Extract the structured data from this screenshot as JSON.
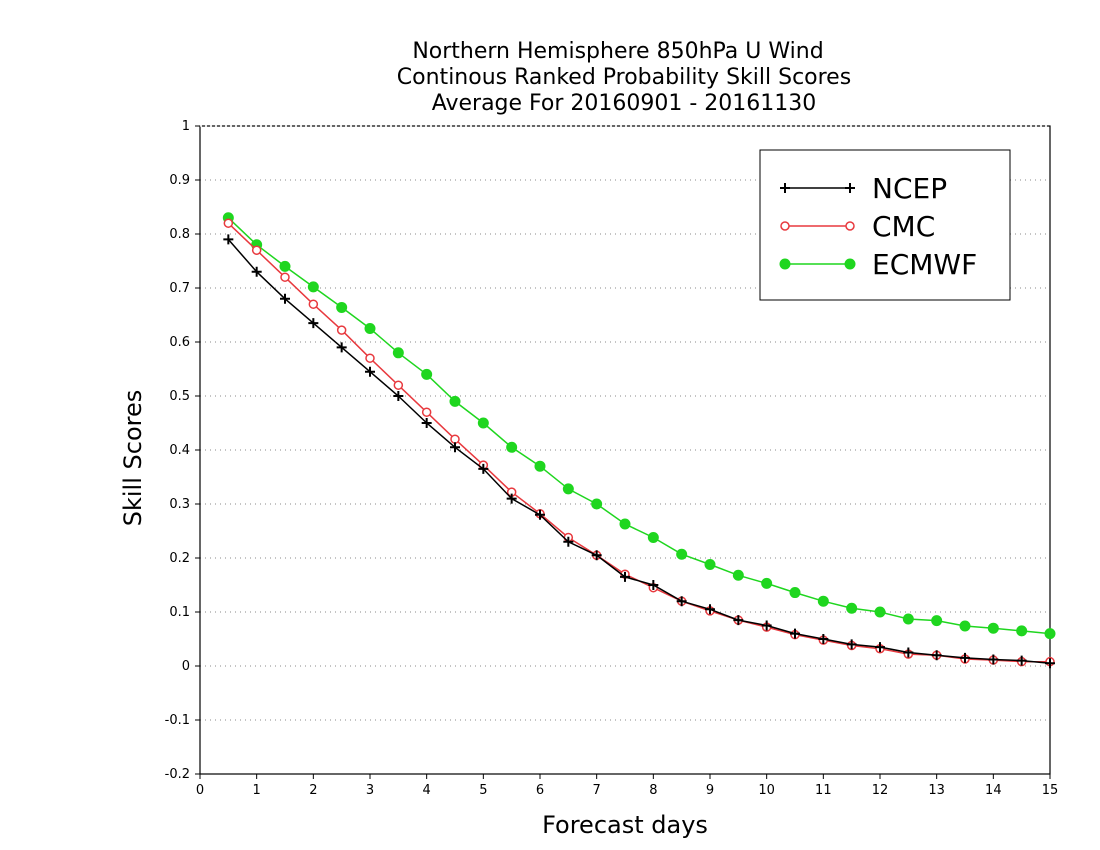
{
  "chart_data": {
    "type": "line",
    "title_lines": [
      "Northern Hemisphere 850hPa U Wind",
      "Continous Ranked Probability Skill Scores",
      "Average For 20160901 - 20161130"
    ],
    "xlabel": "Forecast days",
    "ylabel": "Skill Scores",
    "xlim": [
      0,
      15
    ],
    "ylim": [
      -0.2,
      1
    ],
    "xticks": [
      0,
      1,
      2,
      3,
      4,
      5,
      6,
      7,
      8,
      9,
      10,
      11,
      12,
      13,
      14,
      15
    ],
    "yticks": [
      -0.2,
      -0.1,
      0,
      0.1,
      0.2,
      0.3,
      0.4,
      0.5,
      0.6,
      0.7,
      0.8,
      0.9,
      1
    ],
    "grid": "horizontal dotted",
    "legend_position": "top-right",
    "x": [
      0.5,
      1,
      1.5,
      2,
      2.5,
      3,
      3.5,
      4,
      4.5,
      5,
      5.5,
      6,
      6.5,
      7,
      7.5,
      8,
      8.5,
      9,
      9.5,
      10,
      10.5,
      11,
      11.5,
      12,
      12.5,
      13,
      13.5,
      14,
      14.5,
      15
    ],
    "series": [
      {
        "name": "NCEP",
        "color": "#000000",
        "marker": "plus",
        "values": [
          0.79,
          0.73,
          0.68,
          0.635,
          0.59,
          0.545,
          0.5,
          0.45,
          0.405,
          0.365,
          0.31,
          0.28,
          0.23,
          0.205,
          0.165,
          0.15,
          0.12,
          0.105,
          0.085,
          0.075,
          0.06,
          0.05,
          0.04,
          0.035,
          0.025,
          0.02,
          0.015,
          0.012,
          0.01,
          0.005
        ]
      },
      {
        "name": "CMC",
        "color": "#e8393e",
        "marker": "open-circle",
        "values": [
          0.82,
          0.77,
          0.72,
          0.67,
          0.622,
          0.57,
          0.52,
          0.47,
          0.42,
          0.372,
          0.322,
          0.282,
          0.238,
          0.205,
          0.17,
          0.145,
          0.12,
          0.102,
          0.085,
          0.072,
          0.058,
          0.048,
          0.038,
          0.032,
          0.022,
          0.02,
          0.013,
          0.011,
          0.008,
          0.008
        ]
      },
      {
        "name": "ECMWF",
        "color": "#1fd61f",
        "marker": "filled-circle",
        "values": [
          0.83,
          0.78,
          0.74,
          0.702,
          0.664,
          0.625,
          0.58,
          0.54,
          0.49,
          0.45,
          0.405,
          0.37,
          0.328,
          0.3,
          0.263,
          0.238,
          0.207,
          0.188,
          0.168,
          0.153,
          0.136,
          0.12,
          0.107,
          0.1,
          0.087,
          0.084,
          0.074,
          0.07,
          0.065,
          0.06
        ]
      }
    ]
  }
}
